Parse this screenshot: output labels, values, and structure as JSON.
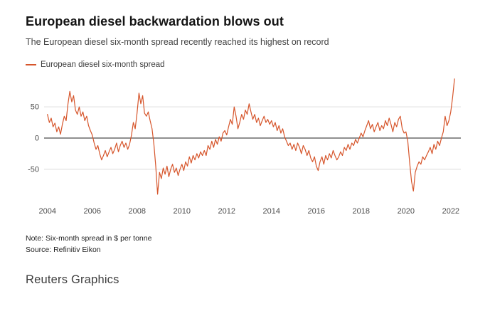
{
  "header": {
    "title": "European diesel backwardation blows out",
    "subtitle": "The European diesel six-month spread recently reached its highest on record"
  },
  "legend": {
    "label": "European diesel six-month spread"
  },
  "colors": {
    "line": "#d6552b",
    "zero_line": "#1f1f1f",
    "grid": "#dddddd",
    "tick_text": "#4a4a4a"
  },
  "footer": {
    "note": "Note: Six-month spread in $ per tonne",
    "source": "Source: Refinitiv Eikon",
    "brand": "Reuters Graphics"
  },
  "chart_data": {
    "type": "line",
    "title": "European diesel backwardation blows out",
    "xlabel": "",
    "ylabel": "Six-month spread in $ per tonne",
    "x_ticks": [
      2004,
      2006,
      2008,
      2010,
      2012,
      2014,
      2016,
      2018,
      2020,
      2022
    ],
    "y_ticks": [
      50,
      0,
      -50
    ],
    "xlim": [
      2003.85,
      2022.45
    ],
    "ylim": [
      -97,
      97
    ],
    "grid": true,
    "legend_position": "top-left",
    "series": [
      {
        "name": "European diesel six-month spread",
        "x_start": 2004.0,
        "x_step": 0.083333,
        "values": [
          38,
          25,
          32,
          18,
          24,
          10,
          18,
          6,
          22,
          35,
          28,
          55,
          75,
          58,
          68,
          45,
          38,
          50,
          35,
          42,
          28,
          35,
          20,
          12,
          5,
          -8,
          -18,
          -12,
          -25,
          -35,
          -28,
          -20,
          -30,
          -22,
          -15,
          -25,
          -18,
          -8,
          -22,
          -12,
          -5,
          -15,
          -8,
          -18,
          -10,
          5,
          25,
          15,
          40,
          72,
          55,
          68,
          40,
          35,
          42,
          28,
          15,
          -10,
          -45,
          -90,
          -55,
          -65,
          -48,
          -58,
          -45,
          -62,
          -50,
          -42,
          -55,
          -48,
          -60,
          -50,
          -42,
          -52,
          -38,
          -45,
          -30,
          -40,
          -28,
          -35,
          -25,
          -32,
          -22,
          -28,
          -20,
          -28,
          -12,
          -18,
          -5,
          -15,
          -2,
          -10,
          2,
          -5,
          8,
          12,
          5,
          18,
          30,
          22,
          50,
          35,
          15,
          25,
          38,
          30,
          45,
          38,
          55,
          42,
          30,
          38,
          25,
          32,
          20,
          28,
          35,
          25,
          30,
          22,
          28,
          18,
          25,
          12,
          20,
          8,
          15,
          2,
          -5,
          -12,
          -8,
          -18,
          -10,
          -20,
          -8,
          -15,
          -25,
          -12,
          -18,
          -28,
          -20,
          -32,
          -38,
          -30,
          -45,
          -52,
          -38,
          -30,
          -42,
          -28,
          -35,
          -25,
          -32,
          -20,
          -28,
          -35,
          -30,
          -22,
          -28,
          -15,
          -20,
          -10,
          -18,
          -8,
          -12,
          -2,
          -8,
          0,
          8,
          2,
          12,
          20,
          28,
          15,
          22,
          10,
          18,
          25,
          12,
          20,
          15,
          28,
          20,
          32,
          22,
          10,
          25,
          18,
          30,
          35,
          15,
          8,
          10,
          -5,
          -40,
          -70,
          -85,
          -55,
          -45,
          -38,
          -42,
          -30,
          -35,
          -28,
          -22,
          -15,
          -25,
          -10,
          -18,
          -5,
          -12,
          0,
          10,
          35,
          20,
          28,
          42,
          65,
          95
        ]
      }
    ]
  }
}
